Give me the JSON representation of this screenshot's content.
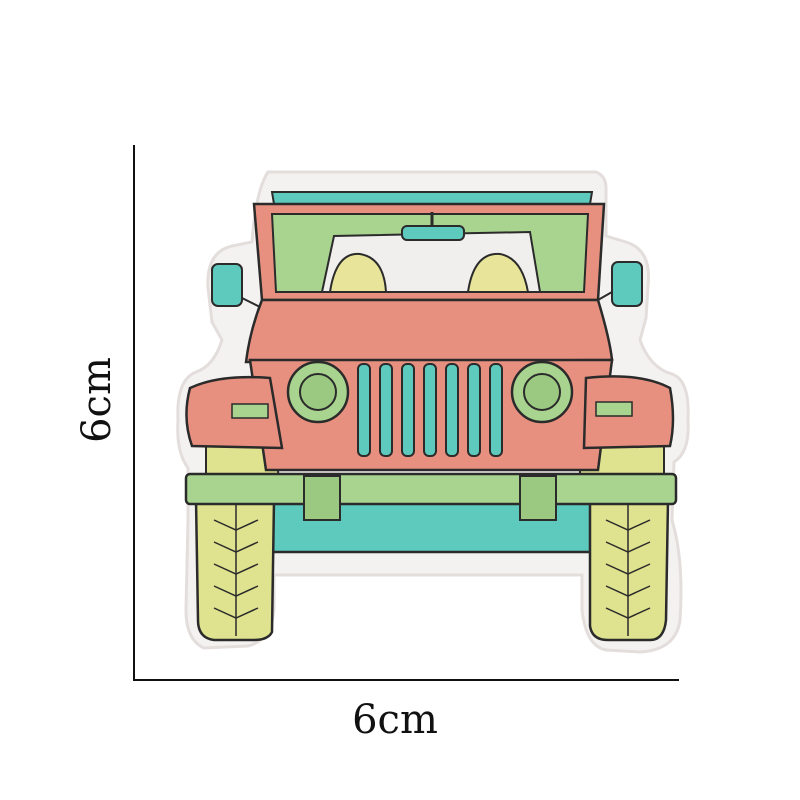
{
  "dimensions": {
    "width_label": "6cm",
    "height_label": "6cm"
  },
  "colors": {
    "body": "#e8907f",
    "body_light": "#f0a898",
    "green": "#a9d48f",
    "teal": "#5ec9bd",
    "tire": "#dfe28e",
    "headlamp_yellow": "#e8e49a",
    "outline": "#2b2b2b",
    "backing": "#f4f2f1"
  }
}
